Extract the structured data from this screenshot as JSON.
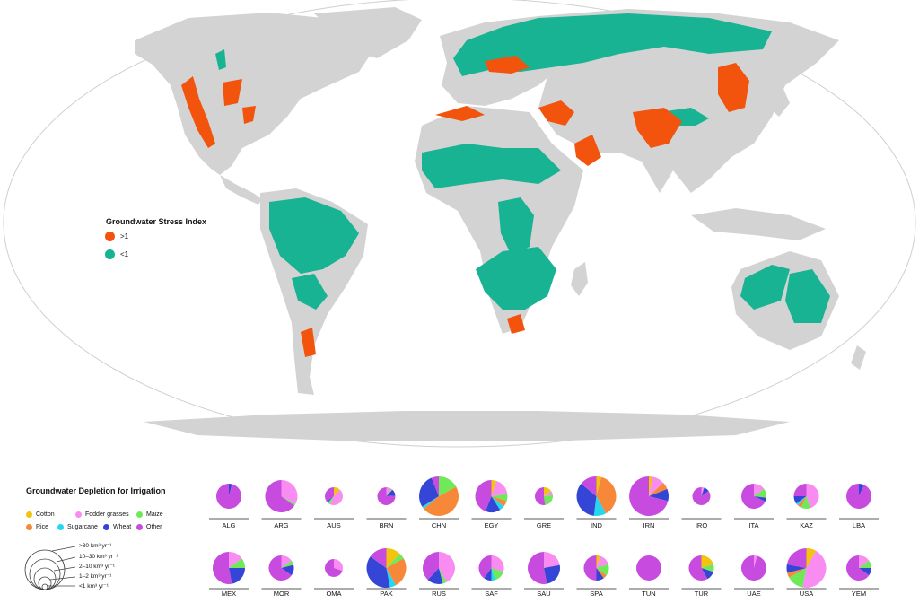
{
  "colors": {
    "land": "#d3d3d3",
    "ocean": "#ffffff",
    "stress_high": "#f2540e",
    "stress_low": "#17b392",
    "cotton": "#f2c40f",
    "fodder_grasses": "#f88cf0",
    "maize": "#6fe85a",
    "rice": "#f7883a",
    "sugarcane": "#22d8f0",
    "wheat": "#3546d6",
    "other": "#c84be0"
  },
  "stress_legend": {
    "title": "Groundwater Stress Index",
    "items": [
      {
        "label": ">1",
        "color": "#f2540e"
      },
      {
        "label": "<1",
        "color": "#17b392"
      }
    ]
  },
  "depletion_legend": {
    "title": "Groundwater Depletion for Irrigation",
    "categories": [
      {
        "key": "cotton",
        "label": "Cotton",
        "color": "#f2c40f"
      },
      {
        "key": "fodder_grasses",
        "label": "Fodder grasses",
        "color": "#f88cf0"
      },
      {
        "key": "maize",
        "label": "Maize",
        "color": "#6fe85a"
      },
      {
        "key": "rice",
        "label": "Rice",
        "color": "#f7883a"
      },
      {
        "key": "sugarcane",
        "label": "Sugarcane",
        "color": "#22d8f0"
      },
      {
        "key": "wheat",
        "label": "Wheat",
        "color": "#3546d6"
      },
      {
        "key": "other",
        "label": "Other",
        "color": "#c84be0"
      }
    ],
    "size_classes": [
      {
        "label": ">30 km³ yr⁻¹",
        "size_class": 5
      },
      {
        "label": "10–30 km³ yr⁻¹",
        "size_class": 4
      },
      {
        "label": "2–10 km³ yr⁻¹",
        "size_class": 3
      },
      {
        "label": "1–2 km³ yr⁻¹",
        "size_class": 2
      },
      {
        "label": "<1 km³ yr⁻¹",
        "size_class": 1
      }
    ]
  },
  "countries": [
    {
      "code": "ALG",
      "size_class": 3,
      "shares": {
        "wheat": 0.04,
        "other": 0.96
      }
    },
    {
      "code": "ARG",
      "size_class": 4,
      "shares": {
        "fodder_grasses": 0.33,
        "maize": 0.02,
        "other": 0.65
      }
    },
    {
      "code": "AUS",
      "size_class": 2,
      "shares": {
        "cotton": 0.12,
        "fodder_grasses": 0.45,
        "maize": 0.05,
        "wheat": 0.03,
        "other": 0.35
      }
    },
    {
      "code": "BRN",
      "size_class": 2,
      "shares": {
        "fodder_grasses": 0.1,
        "maize": 0.02,
        "wheat": 0.12,
        "other": 0.76
      }
    },
    {
      "code": "CHN",
      "size_class": 5,
      "shares": {
        "maize": 0.17,
        "rice": 0.47,
        "sugarcane": 0.02,
        "wheat": 0.28,
        "other": 0.06
      }
    },
    {
      "code": "EGY",
      "size_class": 4,
      "shares": {
        "cotton": 0.05,
        "fodder_grasses": 0.18,
        "maize": 0.07,
        "rice": 0.06,
        "sugarcane": 0.05,
        "wheat": 0.15,
        "other": 0.44
      }
    },
    {
      "code": "GRE",
      "size_class": 2,
      "shares": {
        "cotton": 0.15,
        "fodder_grasses": 0.08,
        "maize": 0.25,
        "other": 0.52
      }
    },
    {
      "code": "IND",
      "size_class": 5,
      "shares": {
        "cotton": 0.04,
        "rice": 0.38,
        "sugarcane": 0.1,
        "wheat": 0.34,
        "other": 0.14
      }
    },
    {
      "code": "IRN",
      "size_class": 5,
      "shares": {
        "cotton": 0.03,
        "fodder_grasses": 0.1,
        "rice": 0.06,
        "wheat": 0.1,
        "other": 0.71
      }
    },
    {
      "code": "IRQ",
      "size_class": 2,
      "shares": {
        "fodder_grasses": 0.05,
        "wheat": 0.1,
        "other": 0.85
      }
    },
    {
      "code": "ITA",
      "size_class": 3,
      "shares": {
        "fodder_grasses": 0.15,
        "maize": 0.12,
        "wheat": 0.05,
        "other": 0.68
      }
    },
    {
      "code": "KAZ",
      "size_class": 3,
      "shares": {
        "fodder_grasses": 0.45,
        "maize": 0.12,
        "rice": 0.05,
        "sugarcane": 0.03,
        "wheat": 0.1,
        "other": 0.25
      }
    },
    {
      "code": "LBA",
      "size_class": 3,
      "shares": {
        "wheat": 0.07,
        "other": 0.93
      }
    },
    {
      "code": "MEX",
      "size_class": 4,
      "shares": {
        "fodder_grasses": 0.15,
        "maize": 0.1,
        "wheat": 0.22,
        "other": 0.53
      }
    },
    {
      "code": "MOR",
      "size_class": 3,
      "shares": {
        "fodder_grasses": 0.15,
        "maize": 0.06,
        "wheat": 0.14,
        "other": 0.65
      }
    },
    {
      "code": "OMA",
      "size_class": 2,
      "shares": {
        "fodder_grasses": 0.3,
        "other": 0.7
      }
    },
    {
      "code": "PAK",
      "size_class": 5,
      "shares": {
        "cotton": 0.12,
        "maize": 0.05,
        "rice": 0.25,
        "sugarcane": 0.05,
        "wheat": 0.38,
        "other": 0.15
      }
    },
    {
      "code": "RUS",
      "size_class": 4,
      "shares": {
        "fodder_grasses": 0.42,
        "maize": 0.04,
        "wheat": 0.16,
        "other": 0.38
      }
    },
    {
      "code": "SAF",
      "size_class": 3,
      "shares": {
        "fodder_grasses": 0.3,
        "maize": 0.15,
        "sugarcane": 0.05,
        "wheat": 0.1,
        "other": 0.4
      }
    },
    {
      "code": "SAU",
      "size_class": 4,
      "shares": {
        "fodder_grasses": 0.22,
        "wheat": 0.25,
        "other": 0.53
      }
    },
    {
      "code": "SPA",
      "size_class": 3,
      "shares": {
        "cotton": 0.05,
        "fodder_grasses": 0.15,
        "maize": 0.15,
        "rice": 0.05,
        "wheat": 0.1,
        "other": 0.5
      }
    },
    {
      "code": "TUN",
      "size_class": 3,
      "shares": {
        "other": 1.0
      }
    },
    {
      "code": "TUR",
      "size_class": 3,
      "shares": {
        "cotton": 0.2,
        "maize": 0.1,
        "wheat": 0.12,
        "other": 0.58
      }
    },
    {
      "code": "UAE",
      "size_class": 3,
      "shares": {
        "fodder_grasses": 0.04,
        "other": 0.96
      }
    },
    {
      "code": "USA",
      "size_class": 5,
      "shares": {
        "cotton": 0.08,
        "fodder_grasses": 0.45,
        "maize": 0.14,
        "rice": 0.04,
        "wheat": 0.07,
        "other": 0.22
      }
    },
    {
      "code": "YEM",
      "size_class": 3,
      "shares": {
        "fodder_grasses": 0.15,
        "maize": 0.1,
        "wheat": 0.1,
        "other": 0.65
      }
    }
  ]
}
